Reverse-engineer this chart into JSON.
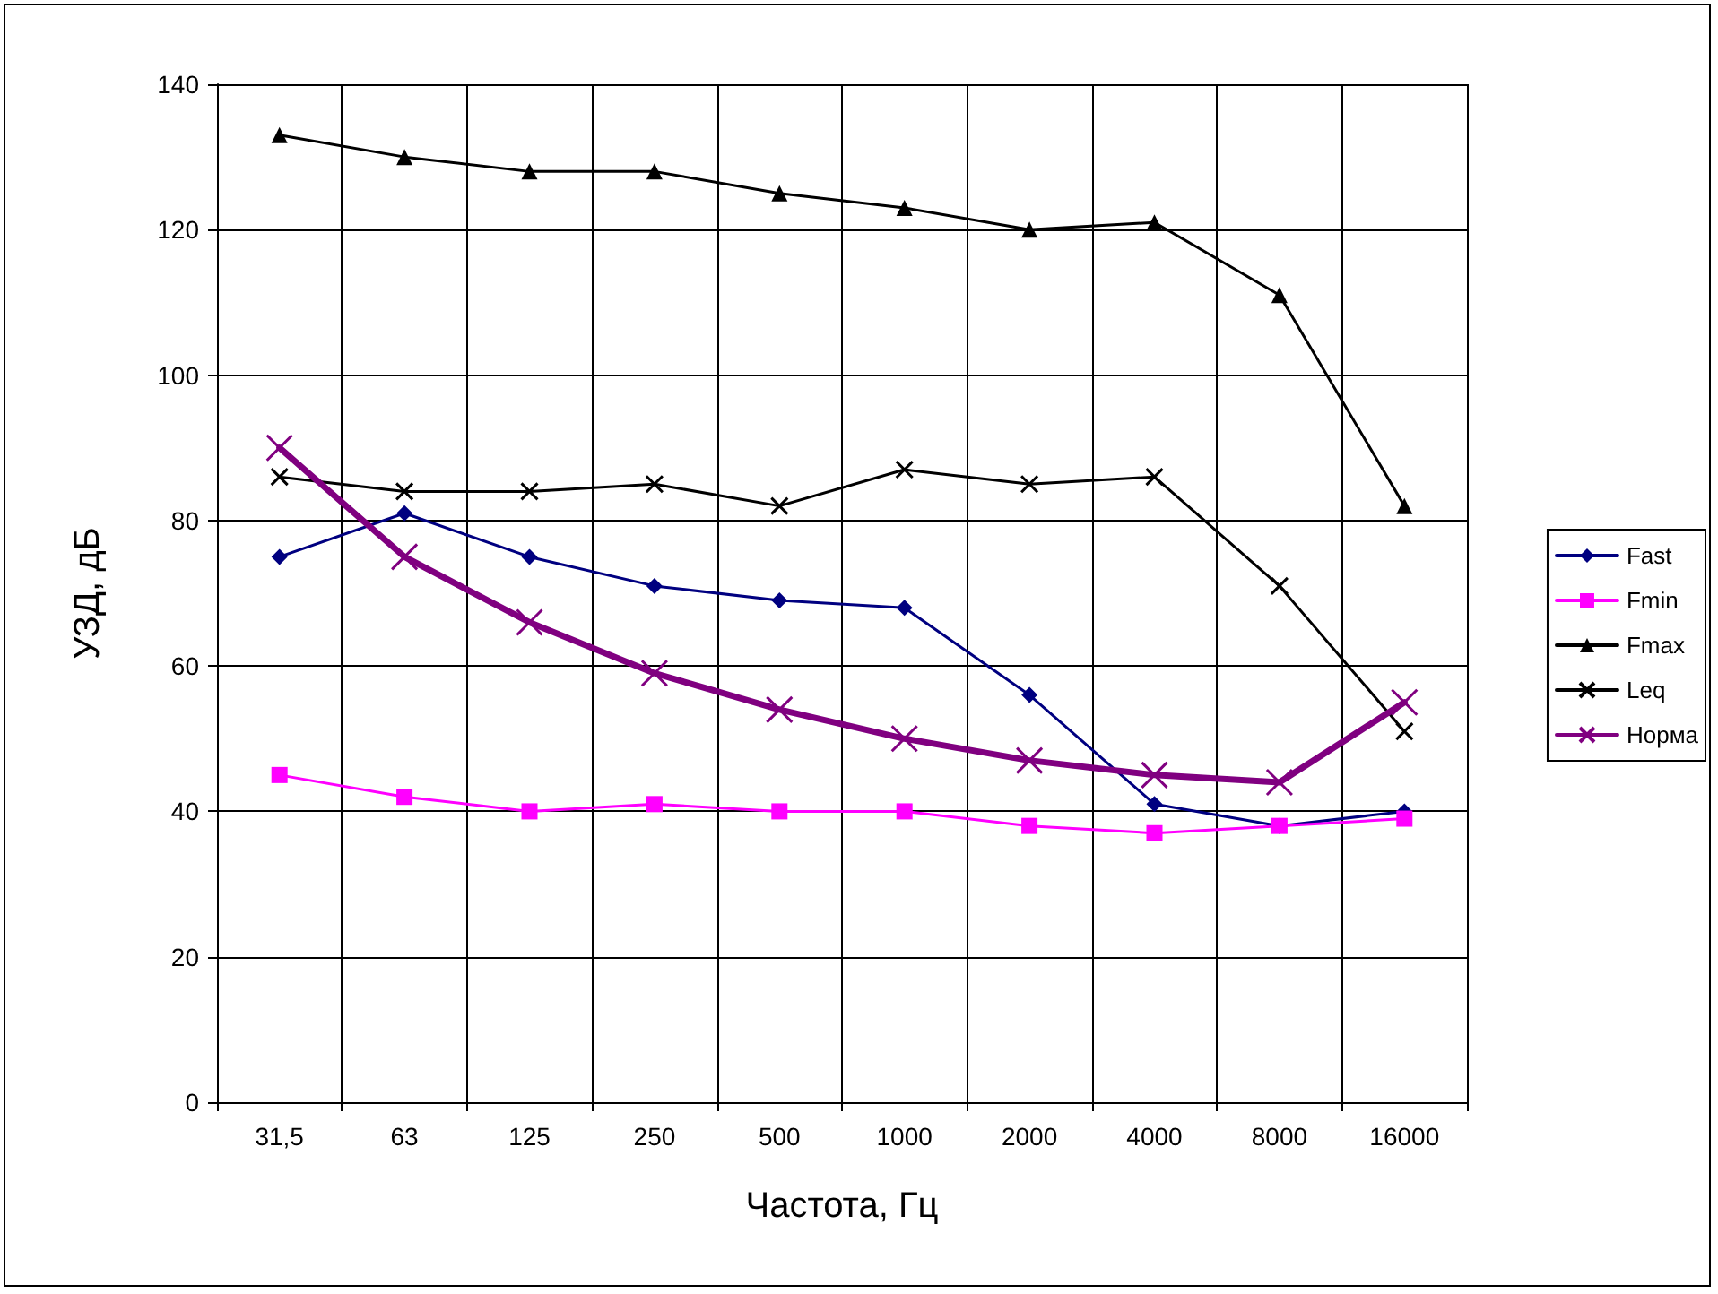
{
  "chart_data": {
    "type": "line",
    "xlabel": "Частота, Гц",
    "ylabel": "УЗД, дБ",
    "categories": [
      "31,5",
      "63",
      "125",
      "250",
      "500",
      "1000",
      "2000",
      "4000",
      "8000",
      "16000"
    ],
    "ylim": [
      0,
      140
    ],
    "yticks": [
      0,
      20,
      40,
      60,
      80,
      100,
      120,
      140
    ],
    "grid": true,
    "legend": "right",
    "series": [
      {
        "name": "Fast",
        "color": "#000080",
        "marker": "diamond",
        "values": [
          75,
          81,
          75,
          71,
          69,
          68,
          56,
          41,
          38,
          40
        ]
      },
      {
        "name": "Fmin",
        "color": "#ff00ff",
        "marker": "square",
        "values": [
          45,
          42,
          40,
          41,
          40,
          40,
          38,
          37,
          38,
          39
        ]
      },
      {
        "name": "Fmax",
        "color": "#000000",
        "marker": "triangle",
        "values": [
          133,
          130,
          128,
          128,
          125,
          123,
          120,
          121,
          111,
          82
        ]
      },
      {
        "name": "Leq",
        "color": "#000000",
        "marker": "cross",
        "values": [
          86,
          84,
          84,
          85,
          82,
          87,
          85,
          86,
          71,
          51
        ]
      },
      {
        "name": "Норма",
        "color": "#800080",
        "marker": "cross",
        "values": [
          90,
          75,
          66,
          59,
          54,
          50,
          47,
          45,
          44,
          55
        ]
      }
    ]
  }
}
